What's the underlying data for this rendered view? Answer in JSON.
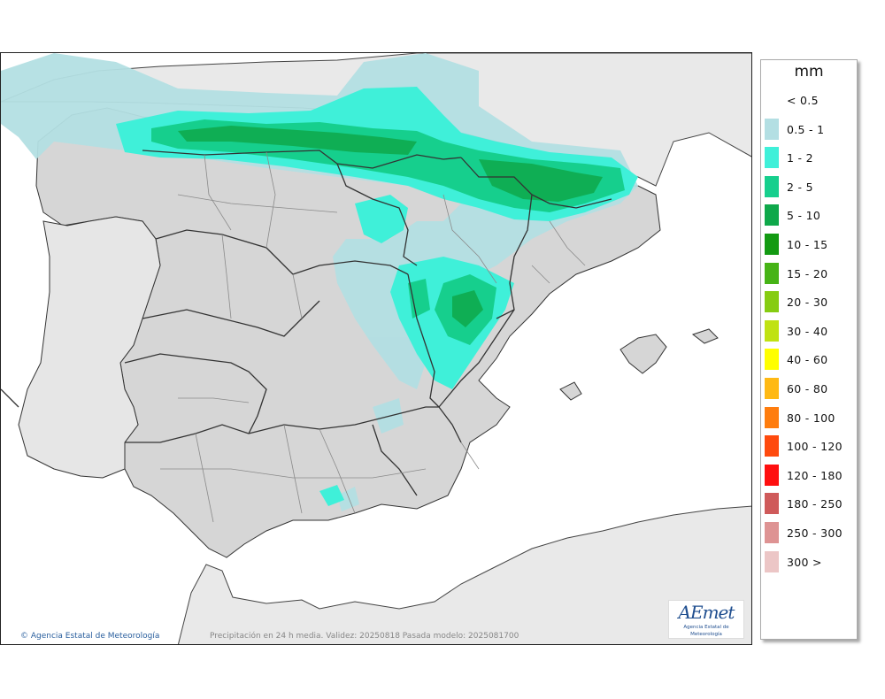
{
  "legend": {
    "title": "mm",
    "items": [
      {
        "label": "< 0.5",
        "color": ""
      },
      {
        "label": "0.5 - 1",
        "color": "#b3dfe3"
      },
      {
        "label": "1 - 2",
        "color": "#3ff0d9"
      },
      {
        "label": "2 - 5",
        "color": "#16cf8d"
      },
      {
        "label": "5 - 10",
        "color": "#0ea84a"
      },
      {
        "label": "10 - 15",
        "color": "#139a12"
      },
      {
        "label": "15 - 20",
        "color": "#46b316"
      },
      {
        "label": "20 - 30",
        "color": "#86cc12"
      },
      {
        "label": "30 - 40",
        "color": "#c0e212"
      },
      {
        "label": "40 - 60",
        "color": "#ffff00"
      },
      {
        "label": "60 - 80",
        "color": "#ffb914"
      },
      {
        "label": "80 - 100",
        "color": "#ff7d0e"
      },
      {
        "label": "100 - 120",
        "color": "#ff4a0e"
      },
      {
        "label": "120 - 180",
        "color": "#ff0f0f"
      },
      {
        "label": "180 - 250",
        "color": "#cf5a5a"
      },
      {
        "label": "250 - 300",
        "color": "#de9393"
      },
      {
        "label": "300 >",
        "color": "#ecc6c6"
      }
    ]
  },
  "footer": {
    "copyright": "Agencia Estatal de Meteorología",
    "caption": "Precipitación en 24 h media. Validez: 20250818 Pasada modelo: 2025081700"
  },
  "logo": {
    "word": "AEmet",
    "subtitle": "Agencia Estatal de Meteorología"
  },
  "map_colors": {
    "sea": "#ffffff",
    "land": "#d8d8d8",
    "foreign_land": "#e9e9e9",
    "border": "#333333",
    "province_line": "#8a8a8a"
  }
}
